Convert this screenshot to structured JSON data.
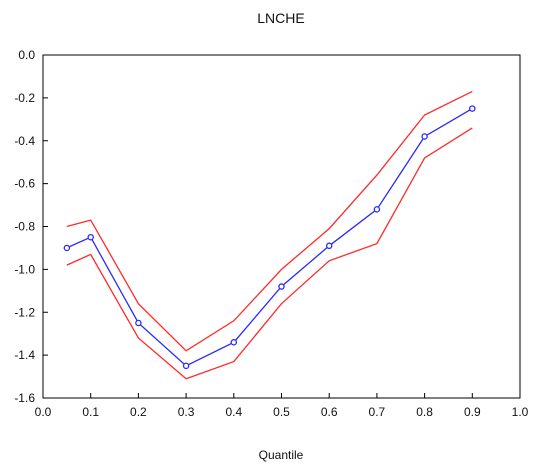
{
  "chart_data": {
    "type": "line",
    "title": "LNCHE",
    "xlabel": "Quantile",
    "ylabel": "",
    "xlim": [
      0.0,
      1.0
    ],
    "ylim": [
      -1.6,
      0.0
    ],
    "x_ticks": [
      "0.0",
      "0.1",
      "0.2",
      "0.3",
      "0.4",
      "0.5",
      "0.6",
      "0.7",
      "0.8",
      "0.9",
      "1.0"
    ],
    "y_ticks": [
      "0.0",
      "-0.2",
      "-0.4",
      "-0.6",
      "-0.8",
      "-1.0",
      "-1.2",
      "-1.4",
      "-1.6"
    ],
    "x": [
      0.05,
      0.1,
      0.2,
      0.3,
      0.4,
      0.5,
      0.6,
      0.7,
      0.8,
      0.9
    ],
    "series": [
      {
        "values": [
          -0.8,
          -0.77,
          -1.16,
          -1.38,
          -1.24,
          -1.0,
          -0.81,
          -0.56,
          -0.28,
          -0.17
        ],
        "color": "#ff2a2a",
        "markers": false
      },
      {
        "values": [
          -0.9,
          -0.85,
          -1.25,
          -1.45,
          -1.34,
          -1.08,
          -0.89,
          -0.72,
          -0.38,
          -0.25
        ],
        "color": "#2a2aff",
        "markers": true
      },
      {
        "values": [
          -0.98,
          -0.93,
          -1.32,
          -1.51,
          -1.43,
          -1.16,
          -0.96,
          -0.88,
          -0.48,
          -0.34
        ],
        "color": "#ff2a2a",
        "markers": false
      }
    ],
    "grid": false,
    "legend": "none"
  }
}
